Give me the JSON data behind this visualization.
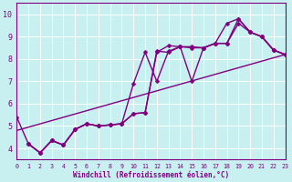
{
  "xlabel": "Windchill (Refroidissement éolien,°C)",
  "background_color": "#c8f0f0",
  "line_color": "#800080",
  "grid_color": "#ffffff",
  "xlim": [
    0,
    23
  ],
  "ylim": [
    3.5,
    10.5
  ],
  "xticks": [
    0,
    1,
    2,
    3,
    4,
    5,
    6,
    7,
    8,
    9,
    10,
    11,
    12,
    13,
    14,
    15,
    16,
    17,
    18,
    19,
    20,
    21,
    22,
    23
  ],
  "yticks": [
    4,
    5,
    6,
    7,
    8,
    9,
    10
  ],
  "lines": [
    {
      "x": [
        0,
        1,
        2,
        3,
        4,
        5,
        6,
        7,
        8,
        9,
        10,
        11,
        12,
        13,
        14,
        15,
        16,
        17,
        18,
        19,
        20,
        21,
        22,
        23
      ],
      "y": [
        5.4,
        4.2,
        3.8,
        4.35,
        4.15,
        4.85,
        5.1,
        5.0,
        5.05,
        5.1,
        5.55,
        5.6,
        8.3,
        8.6,
        8.55,
        8.5,
        8.5,
        8.7,
        9.6,
        9.8,
        9.2,
        9.0,
        8.4,
        8.2
      ],
      "has_markers": true
    },
    {
      "x": [
        1,
        2,
        3,
        4,
        5,
        6,
        7,
        8,
        9,
        10,
        11,
        12,
        13,
        14,
        15,
        16,
        17,
        18,
        19,
        20,
        21,
        22,
        23
      ],
      "y": [
        4.2,
        3.8,
        4.35,
        4.15,
        4.85,
        5.1,
        5.0,
        5.05,
        5.1,
        6.9,
        8.3,
        7.0,
        8.35,
        8.55,
        7.0,
        8.5,
        8.7,
        8.7,
        9.8,
        9.2,
        9.0,
        8.4,
        8.2
      ],
      "has_markers": true
    },
    {
      "x": [
        1,
        2,
        3,
        4,
        5,
        6,
        7,
        8,
        9,
        10,
        11,
        12,
        13,
        14,
        15,
        16,
        17,
        18,
        19,
        20,
        21,
        22,
        23
      ],
      "y": [
        4.2,
        3.8,
        4.35,
        4.15,
        4.85,
        5.1,
        5.0,
        5.05,
        5.1,
        5.55,
        5.6,
        8.35,
        8.3,
        8.55,
        8.55,
        8.5,
        8.7,
        8.7,
        9.6,
        9.2,
        9.0,
        8.4,
        8.2
      ],
      "has_markers": true
    },
    {
      "x": [
        0,
        23
      ],
      "y": [
        4.8,
        8.2
      ],
      "has_markers": false
    }
  ],
  "marker": "D",
  "marker_size": 2.5,
  "line_width": 1.0
}
